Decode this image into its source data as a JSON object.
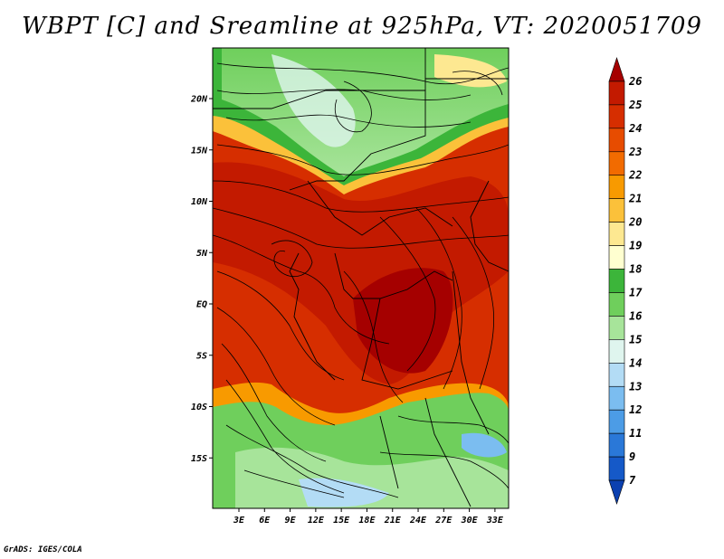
{
  "title": "WBPT [C] and Sreamline at 925hPa, VT: 2020051709",
  "footer": "GrADS: IGES/COLA",
  "map": {
    "variable": "Wet-bulb potential temperature",
    "level": "925hPa",
    "lat_range": [
      -20,
      25
    ],
    "lon_range": [
      0,
      35.5
    ],
    "lat_ticks": [
      {
        "value": 20,
        "label": "20N"
      },
      {
        "value": 15,
        "label": "15N"
      },
      {
        "value": 10,
        "label": "10N"
      },
      {
        "value": 5,
        "label": "5N"
      },
      {
        "value": 0,
        "label": "EQ"
      },
      {
        "value": -5,
        "label": "5S"
      },
      {
        "value": -10,
        "label": "10S"
      },
      {
        "value": -15,
        "label": "15S"
      }
    ],
    "lon_ticks": [
      {
        "value": 3,
        "label": "3E"
      },
      {
        "value": 6,
        "label": "6E"
      },
      {
        "value": 9,
        "label": "9E"
      },
      {
        "value": 12,
        "label": "12E"
      },
      {
        "value": 15,
        "label": "15E"
      },
      {
        "value": 18,
        "label": "18E"
      },
      {
        "value": 21,
        "label": "21E"
      },
      {
        "value": 24,
        "label": "24E"
      },
      {
        "value": 27,
        "label": "27E"
      },
      {
        "value": 30,
        "label": "30E"
      },
      {
        "value": 33,
        "label": "33E"
      }
    ]
  },
  "colorbar": {
    "levels": [
      "26",
      "25",
      "24",
      "23",
      "22",
      "21",
      "20",
      "19",
      "18",
      "17",
      "16",
      "15",
      "14",
      "13",
      "12",
      "11",
      "9",
      "7"
    ],
    "colors": [
      "#a50000",
      "#c31a00",
      "#d62e00",
      "#e74c00",
      "#f26b00",
      "#f89a00",
      "#fbc13a",
      "#fde891",
      "#ffffd0",
      "#3cb53a",
      "#6fcf5c",
      "#a7e49a",
      "#dff5ee",
      "#b3dcf5",
      "#7bbdf0",
      "#4c9ce6",
      "#2a78d8",
      "#1559c8",
      "#0b40b0"
    ]
  }
}
